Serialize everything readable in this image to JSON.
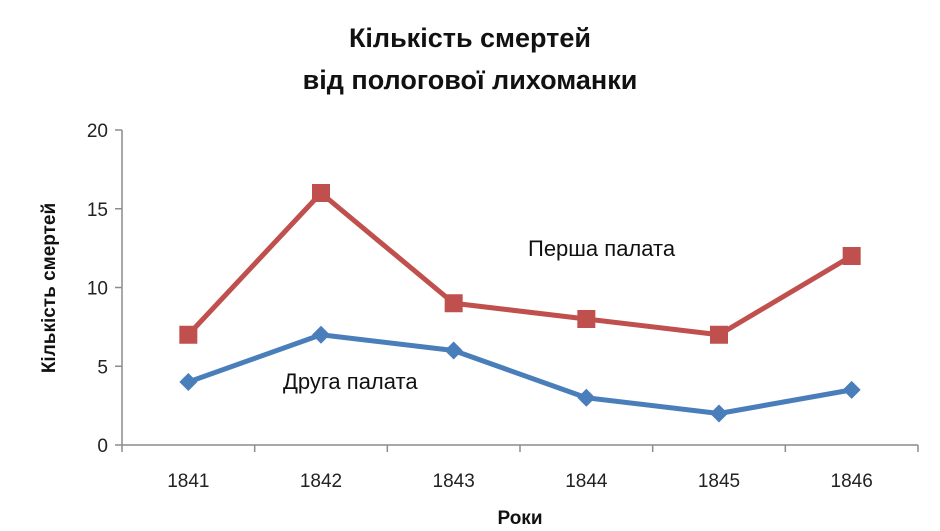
{
  "chart_data": {
    "type": "line",
    "title_lines": [
      "Кількість смертей",
      "від пологової лихоманки"
    ],
    "xlabel": "Роки",
    "ylabel": "Кількість смертей",
    "categories": [
      "1841",
      "1842",
      "1843",
      "1844",
      "1845",
      "1846"
    ],
    "ylim": [
      0,
      20
    ],
    "yticks": [
      "0",
      "5",
      "10",
      "15",
      "20"
    ],
    "grid": false,
    "legend": "none",
    "series": [
      {
        "name": "Перша палата",
        "values": [
          7,
          16,
          9,
          8,
          7,
          12
        ],
        "color": "#c0504d",
        "marker": "square"
      },
      {
        "name": "Друга палата",
        "values": [
          4,
          7,
          6,
          3,
          2,
          3.5
        ],
        "color": "#4a7ebb",
        "marker": "diamond"
      }
    ]
  }
}
